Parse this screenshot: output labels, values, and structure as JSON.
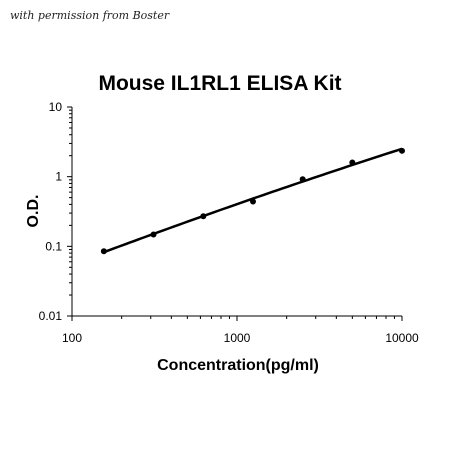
{
  "watermark": "with permission from Boster",
  "chart_data": {
    "type": "scatter",
    "title": "Mouse IL1RL1 ELISA Kit",
    "xlabel": "Concentration(pg/ml)",
    "ylabel": "O.D.",
    "xscale": "log",
    "yscale": "log",
    "xlim": [
      100,
      10000
    ],
    "ylim": [
      0.01,
      10
    ],
    "xticks": [
      "100",
      "1000",
      "10000"
    ],
    "yticks": [
      "0.01",
      "0.1",
      "1",
      "10"
    ],
    "grid": false,
    "legend": "none",
    "series": [
      {
        "x": [
          156,
          312,
          625,
          1250,
          2500,
          5000,
          10000
        ],
        "y": [
          0.085,
          0.148,
          0.27,
          0.44,
          0.92,
          1.6,
          2.35
        ],
        "marker": "circle",
        "trendline": true
      }
    ],
    "color": "#000000"
  }
}
